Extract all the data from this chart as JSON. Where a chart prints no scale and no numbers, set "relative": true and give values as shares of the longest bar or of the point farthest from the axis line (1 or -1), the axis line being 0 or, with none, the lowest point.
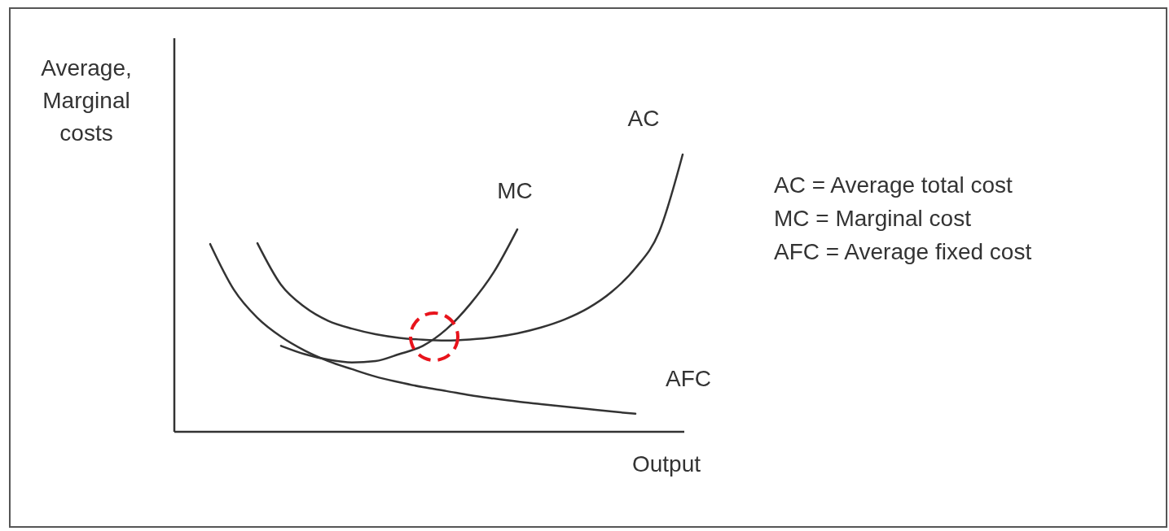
{
  "chart_data": {
    "type": "line",
    "relative": true,
    "ylabel": "Average, Marginal costs",
    "xlabel": "Output",
    "marker": "none",
    "line_style": "solid",
    "categories": [
      null,
      null,
      null,
      null,
      null,
      null,
      null,
      null,
      null,
      null,
      null,
      null,
      null,
      null,
      null,
      null,
      null,
      null,
      null,
      null,
      null
    ],
    "series": [
      {
        "name": "AC",
        "color": "#333333",
        "values": [
          null,
          null,
          0.68,
          0.53,
          0.45,
          0.4,
          0.372,
          0.352,
          0.339,
          0.332,
          0.329,
          0.333,
          0.341,
          0.355,
          0.376,
          0.405,
          0.446,
          0.505,
          0.59,
          0.72,
          1
        ]
      },
      {
        "name": "MC",
        "color": "#333333",
        "values": [
          null,
          null,
          null,
          0.31,
          0.28,
          0.26,
          0.25,
          0.255,
          0.28,
          0.31,
          0.37,
          0.46,
          0.575,
          0.73,
          null,
          null,
          null,
          null,
          null,
          null,
          null
        ]
      },
      {
        "name": "AFC",
        "color": "#333333",
        "values": [
          0.677,
          0.513,
          0.411,
          0.343,
          0.293,
          0.255,
          0.226,
          0.199,
          0.179,
          0.161,
          0.147,
          0.132,
          0.12,
          0.109,
          0.1,
          0.091,
          0.082,
          0.073,
          0.065,
          null,
          null
        ]
      }
    ],
    "annotations": [
      "AC = Average total cost",
      "MC = Marginal cost",
      "AFC = Average fixed cost"
    ]
  }
}
